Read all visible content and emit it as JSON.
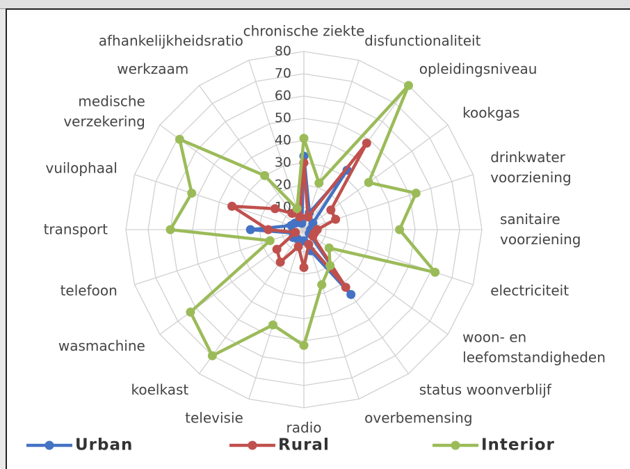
{
  "chart_data": {
    "type": "radar",
    "categories": [
      "chronische ziekte",
      "disfunctionaliteit",
      "opleidingsniveau",
      "kookgas",
      "drinkwater\nvoorziening",
      "sanitaire\nvoorziening",
      "electriciteit",
      "woon- en\nleefomstandigheden",
      "status woonverblijf",
      "overbemensing",
      "radio",
      "televisie",
      "koelkast",
      "wasmachine",
      "telefoon",
      "transport",
      "vuilophaal",
      "medische\nverzekering",
      "werkzaam",
      "afhankelijkheidsratio"
    ],
    "series": [
      {
        "name": "Urban",
        "color": "#4472c4",
        "values": [
          33,
          8,
          33,
          5,
          4,
          3,
          4,
          3,
          36,
          10,
          5,
          6,
          5,
          6,
          5,
          24,
          6,
          5,
          4,
          3
        ]
      },
      {
        "name": "Rural",
        "color": "#c0504d",
        "values": [
          30,
          6,
          48,
          15,
          15,
          6,
          5,
          5,
          32,
          7,
          17,
          8,
          18,
          15,
          4,
          16,
          34,
          16,
          9,
          6
        ]
      },
      {
        "name": "Interior",
        "color": "#9bbb59",
        "values": [
          41,
          22,
          80,
          36,
          53,
          43,
          62,
          14,
          20,
          26,
          52,
          45,
          70,
          63,
          16,
          60,
          53,
          69,
          30,
          10
        ]
      }
    ],
    "ylim": [
      0,
      80
    ],
    "yticks": [
      0,
      10,
      20,
      30,
      40,
      50,
      60,
      70,
      80
    ],
    "grid": true,
    "legend": "bottom"
  }
}
